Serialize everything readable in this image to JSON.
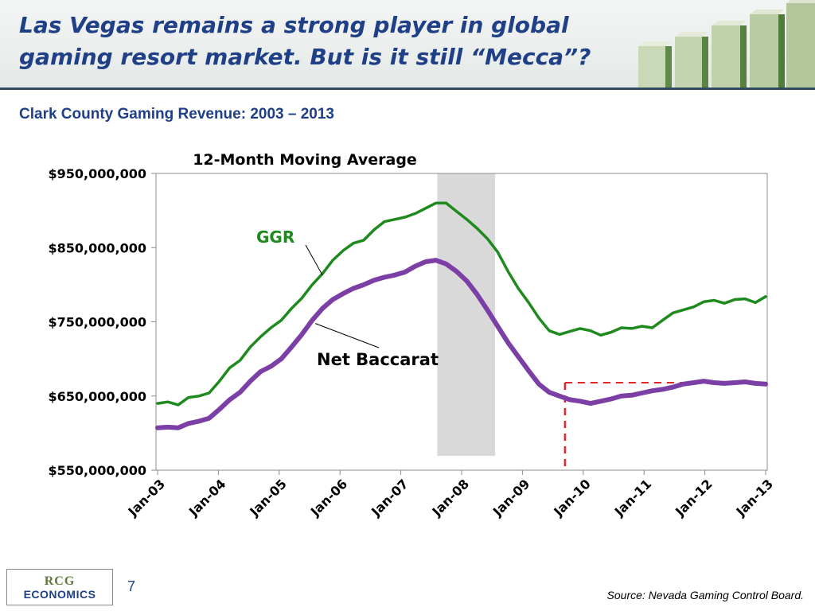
{
  "header": {
    "title_line1": "Las Vegas remains a strong player in global",
    "title_line2": "gaming resort market. But is it still “Mecca”?"
  },
  "subtitle": "Clark County Gaming Revenue: 2003 – 2013",
  "chart_data": {
    "type": "line",
    "title": "12-Month Moving Average",
    "xlabel": "",
    "ylabel": "",
    "ylim": [
      550000000,
      950000000
    ],
    "y_ticks": [
      "$950,000,000",
      "$850,000,000",
      "$750,000,000",
      "$650,000,000",
      "$550,000,000"
    ],
    "y_tick_values": [
      950000000,
      850000000,
      750000000,
      650000000,
      550000000
    ],
    "x_ticks": [
      "Jan-03",
      "Jan-04",
      "Jan-05",
      "Jan-06",
      "Jan-07",
      "Jan-08",
      "Jan-09",
      "Jan-10",
      "Jan-11",
      "Jan-12",
      "Jan-13"
    ],
    "grid": false,
    "series": [
      {
        "name": "GGR",
        "color": "#1e8a1e",
        "values": [
          640000000,
          642000000,
          638000000,
          648000000,
          650000000,
          654000000,
          670000000,
          688000000,
          698000000,
          716000000,
          730000000,
          742000000,
          752000000,
          768000000,
          782000000,
          800000000,
          815000000,
          833000000,
          846000000,
          856000000,
          860000000,
          874000000,
          885000000,
          888000000,
          891000000,
          896000000,
          903000000,
          910000000,
          910000000,
          899000000,
          888000000,
          876000000,
          862000000,
          844000000,
          818000000,
          795000000,
          776000000,
          755000000,
          738000000,
          733000000,
          737000000,
          741000000,
          738000000,
          732000000,
          736000000,
          742000000,
          741000000,
          744000000,
          742000000,
          752000000,
          762000000,
          766000000,
          770000000,
          777000000,
          779000000,
          775000000,
          780000000,
          781000000,
          776000000,
          784000000
        ]
      },
      {
        "name": "Net Baccarat",
        "color": "#7b3fa6",
        "values": [
          607000000,
          608000000,
          607000000,
          613000000,
          616000000,
          620000000,
          632000000,
          645000000,
          655000000,
          670000000,
          683000000,
          690000000,
          700000000,
          716000000,
          733000000,
          752000000,
          768000000,
          780000000,
          788000000,
          795000000,
          800000000,
          806000000,
          810000000,
          813000000,
          817000000,
          825000000,
          831000000,
          833000000,
          828000000,
          818000000,
          805000000,
          787000000,
          766000000,
          744000000,
          722000000,
          703000000,
          684000000,
          666000000,
          655000000,
          650000000,
          645000000,
          643000000,
          640000000,
          643000000,
          646000000,
          650000000,
          651000000,
          654000000,
          657000000,
          659000000,
          662000000,
          666000000,
          668000000,
          670000000,
          668000000,
          667000000,
          668000000,
          669000000,
          667000000,
          666000000
        ]
      }
    ],
    "recession_band": {
      "from_x": 4.6,
      "to_x": 5.55,
      "color": "#d9d9d9"
    },
    "reference": {
      "x": 6.7,
      "y": 668000000,
      "color": "#e3262b"
    },
    "annotations": {
      "ggr": "GGR",
      "baccarat": "Net Baccarat"
    }
  },
  "footer": {
    "logo_top": "RCG",
    "logo_bottom": "ECONOMICS",
    "page_number": "7",
    "source": "Source: Nevada Gaming Control Board."
  }
}
